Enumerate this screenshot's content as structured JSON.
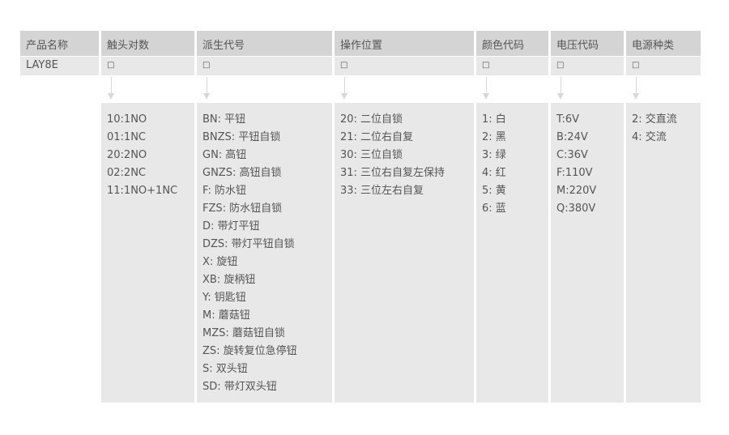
{
  "headers": [
    "产品名称",
    "触头对数",
    "派生代号",
    "操作位置",
    "颜色代码",
    "电压代码",
    "电源种类"
  ],
  "row2": {
    "product": "LAY8E",
    "placeholder": "□"
  },
  "options": {
    "contacts": [
      "10:1NO",
      "01:1NC",
      "20:2NO",
      "02:2NC",
      "11:1NO+1NC"
    ],
    "derivative": [
      "BN: 平钮",
      "BNZS: 平钮自锁",
      "GN: 高钮",
      "GNZS: 高钮自锁",
      "F: 防水钮",
      "FZS: 防水钮自锁",
      "D: 带灯平钮",
      "DZS: 带灯平钮自锁",
      "X: 旋钮",
      "XB: 旋柄钮",
      "Y: 钥匙钮",
      "M: 蘑菇钮",
      "MZS: 蘑菇钮自锁",
      "ZS: 旋转复位急停钮",
      "S: 双头钮",
      "SD: 带灯双头钮"
    ],
    "operation": [
      "20: 二位自锁",
      "21: 二位右自复",
      "30: 三位自锁",
      "31: 三位右自复左保持",
      "33: 三位左右自复"
    ],
    "color": [
      "1: 白",
      "2: 黑",
      "3: 绿",
      "4: 红",
      "5: 黄",
      "6: 蓝"
    ],
    "voltage": [
      "T:6V",
      "B:24V",
      "C:36V",
      "F:110V",
      "M:220V",
      "Q:380V"
    ],
    "power": [
      "2: 交直流",
      "4: 交流"
    ]
  }
}
